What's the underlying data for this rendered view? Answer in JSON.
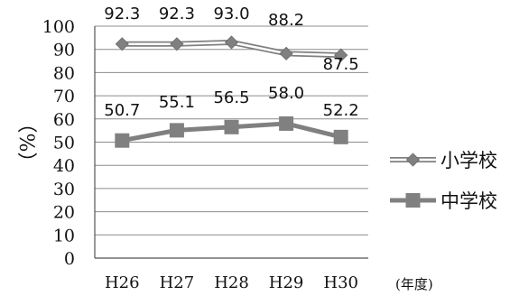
{
  "chart_data": {
    "type": "line",
    "categories": [
      "H26",
      "H27",
      "H28",
      "H29",
      "H30"
    ],
    "series": [
      {
        "name": "小学校",
        "values": [
          92.3,
          92.3,
          93.0,
          88.2,
          87.5
        ],
        "labels": [
          "92.3",
          "92.3",
          "93.0",
          "88.2",
          "87.5"
        ],
        "marker": "diamond",
        "line_style": "double",
        "color": "#808080"
      },
      {
        "name": "中学校",
        "values": [
          50.7,
          55.1,
          56.5,
          58.0,
          52.2
        ],
        "labels": [
          "50.7",
          "55.1",
          "56.5",
          "58.0",
          "52.2"
        ],
        "marker": "square",
        "line_style": "solid",
        "color": "#808080"
      }
    ],
    "yticks": [
      "0",
      "10",
      "20",
      "30",
      "40",
      "50",
      "60",
      "70",
      "80",
      "90",
      "100"
    ],
    "ylim": [
      0,
      100
    ],
    "ylabel": "（%）",
    "xunit": "(年度)",
    "grid": true,
    "legend_position": "right"
  }
}
